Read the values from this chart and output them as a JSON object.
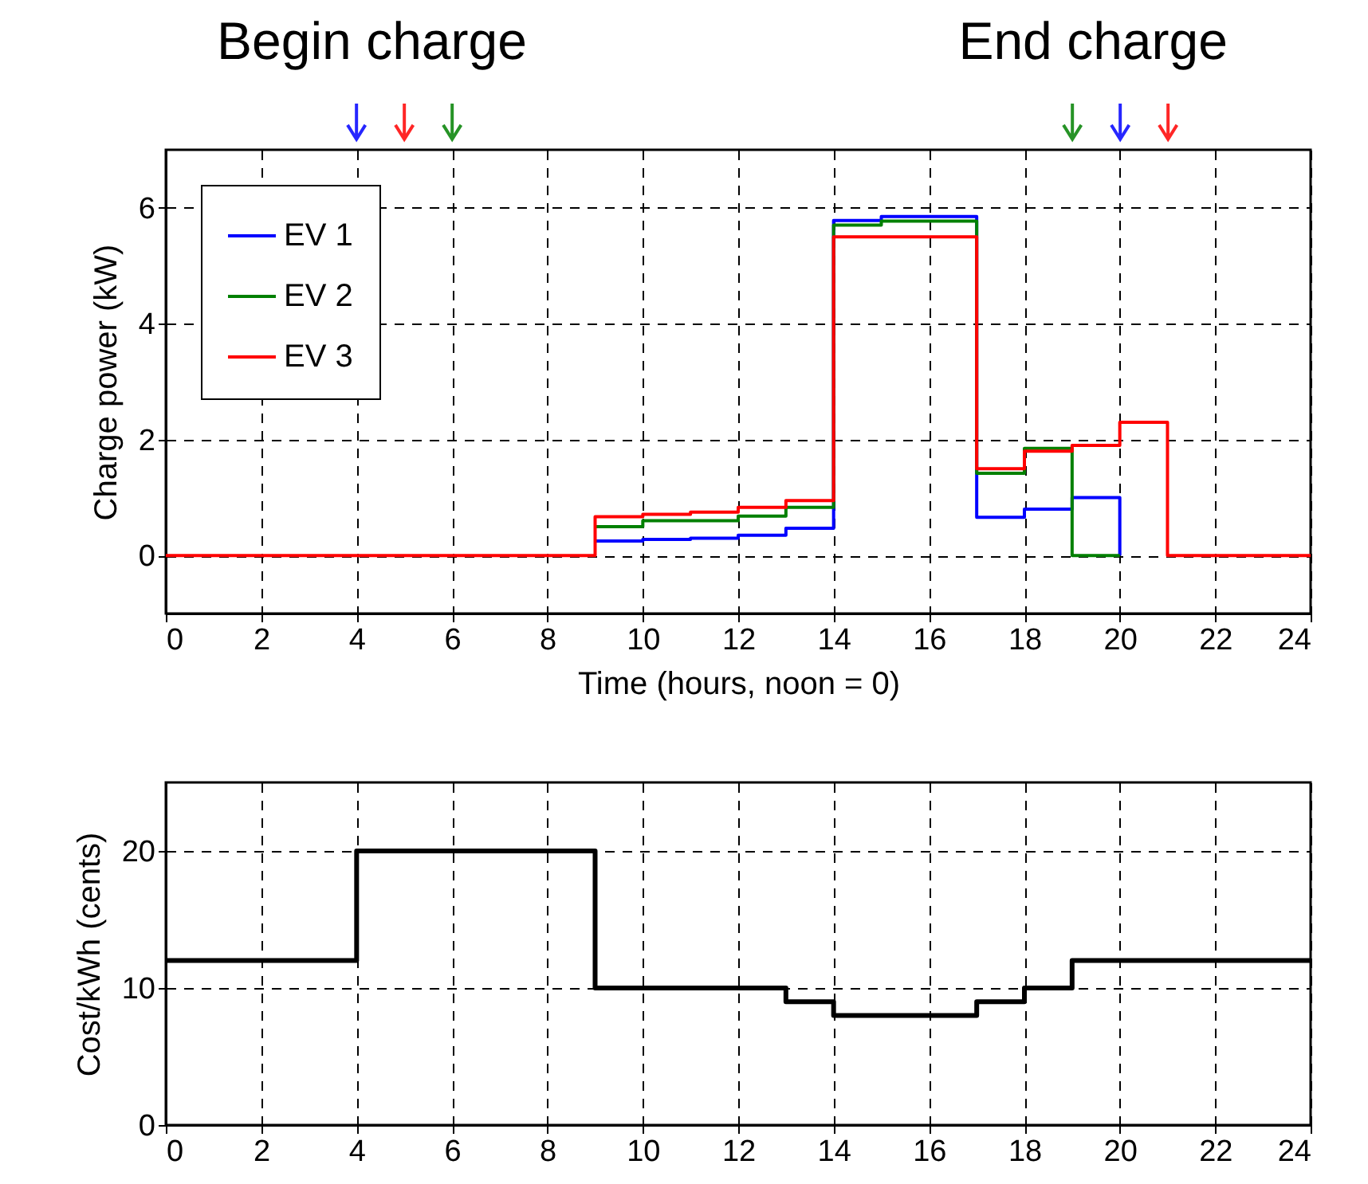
{
  "chart_data": [
    {
      "type": "step",
      "xlabel": "Time (hours, noon = 0)",
      "ylabel": "Charge power (kW)",
      "x": [
        0,
        1,
        2,
        3,
        4,
        5,
        6,
        7,
        8,
        9,
        10,
        11,
        12,
        13,
        14,
        15,
        16,
        17,
        18,
        19,
        20,
        21,
        22,
        23,
        24
      ],
      "xlim": [
        0,
        24
      ],
      "xticks": [
        0,
        2,
        4,
        6,
        8,
        10,
        12,
        14,
        16,
        18,
        20,
        22,
        24
      ],
      "ylim": [
        -1,
        7
      ],
      "yticks": [
        0,
        2,
        4,
        6
      ],
      "grid": true,
      "legend": "top left",
      "line_style": "solid",
      "annotations": [
        "Begin charge",
        "End charge"
      ],
      "series": [
        {
          "name": "EV 1",
          "color": "#0000ff",
          "values": [
            null,
            null,
            null,
            null,
            null,
            null,
            null,
            null,
            null,
            0.25,
            0.28,
            0.3,
            0.35,
            0.47,
            5.78,
            5.85,
            5.85,
            0.66,
            0.8,
            1.0,
            0,
            null,
            null,
            null,
            null
          ]
        },
        {
          "name": "EV 2",
          "color": "#008000",
          "values": [
            null,
            null,
            null,
            null,
            null,
            null,
            null,
            null,
            null,
            0.5,
            0.6,
            0.6,
            0.68,
            0.83,
            5.7,
            5.77,
            5.77,
            1.42,
            1.85,
            0,
            0,
            null,
            null,
            null,
            null
          ]
        },
        {
          "name": "EV 3",
          "color": "#ff0000",
          "values": [
            0,
            0,
            0,
            0,
            0,
            0,
            0,
            0,
            0,
            0.67,
            0.71,
            0.75,
            0.83,
            0.95,
            5.5,
            5.5,
            5.5,
            1.5,
            1.8,
            1.9,
            2.3,
            0,
            0,
            0,
            0
          ]
        }
      ]
    },
    {
      "type": "step",
      "ylabel": "Cost/kWh (cents)",
      "x": [
        0,
        1,
        2,
        3,
        4,
        5,
        6,
        7,
        8,
        9,
        10,
        11,
        12,
        13,
        14,
        15,
        16,
        17,
        18,
        19,
        20,
        21,
        22,
        23,
        24
      ],
      "xlim": [
        0,
        24
      ],
      "xticks": [
        0,
        2,
        4,
        6,
        8,
        10,
        12,
        14,
        16,
        18,
        20,
        22,
        24
      ],
      "ylim": [
        0,
        25
      ],
      "yticks": [
        0,
        10,
        20
      ],
      "grid": true,
      "line_style": "solid",
      "series": [
        {
          "color": "#000000",
          "values": [
            12,
            12,
            12,
            12,
            20,
            20,
            20,
            20,
            20,
            10,
            10,
            10,
            10,
            9,
            8,
            8,
            8,
            9,
            10,
            12,
            12,
            12,
            12,
            12,
            12
          ]
        }
      ]
    }
  ]
}
